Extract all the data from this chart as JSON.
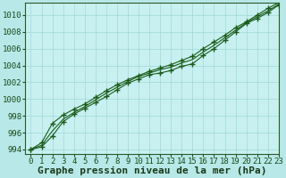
{
  "background_color": "#b8e8e8",
  "plot_bg_color": "#c8f0f0",
  "grid_color": "#a0d8d8",
  "line_color": "#1a5c1a",
  "marker_color": "#1a5c1a",
  "xlim": [
    -0.5,
    23
  ],
  "ylim": [
    993.5,
    1011.5
  ],
  "xticks": [
    0,
    1,
    2,
    3,
    4,
    5,
    6,
    7,
    8,
    9,
    10,
    11,
    12,
    13,
    14,
    15,
    16,
    17,
    18,
    19,
    20,
    21,
    22,
    23
  ],
  "yticks": [
    994,
    996,
    998,
    1000,
    1002,
    1004,
    1006,
    1008,
    1010
  ],
  "xlabel": "Graphe pression niveau de la mer (hPa)",
  "series": [
    [
      994.0,
      994.3,
      995.6,
      997.3,
      998.2,
      998.9,
      999.6,
      1000.3,
      1001.1,
      1001.9,
      1002.4,
      1002.9,
      1003.1,
      1003.4,
      1003.9,
      1004.2,
      1005.2,
      1006.0,
      1007.0,
      1008.0,
      1009.0,
      1009.6,
      1010.3,
      1011.2
    ],
    [
      994.0,
      994.5,
      996.2,
      997.6,
      998.4,
      999.1,
      999.9,
      1000.7,
      1001.4,
      1002.1,
      1002.7,
      1003.1,
      1003.5,
      1003.8,
      1004.3,
      1004.7,
      1005.6,
      1006.4,
      1007.3,
      1008.2,
      1009.1,
      1009.8,
      1010.5,
      1011.3
    ],
    [
      994.0,
      994.8,
      997.1,
      998.1,
      998.8,
      999.4,
      1000.2,
      1001.0,
      1001.7,
      1002.3,
      1002.8,
      1003.3,
      1003.7,
      1004.1,
      1004.6,
      1005.1,
      1006.0,
      1006.8,
      1007.6,
      1008.5,
      1009.2,
      1010.0,
      1010.8,
      1011.5
    ]
  ],
  "title_fontsize": 8,
  "tick_fontsize": 6.5
}
